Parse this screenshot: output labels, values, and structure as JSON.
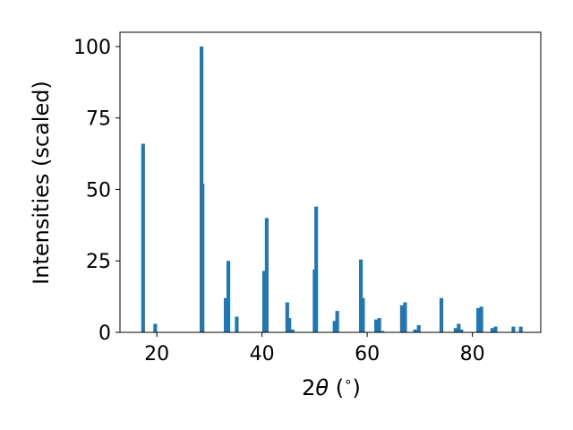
{
  "chart_data": {
    "type": "bar",
    "title": "",
    "xlabel_prefix": "2",
    "xlabel_symbol": "θ",
    "xlabel_suffix": " (",
    "xlabel_degree": "∘",
    "xlabel_close": ")",
    "ylabel": "Intensities (scaled)",
    "xlim": [
      13.0,
      93.0
    ],
    "ylim": [
      0,
      105
    ],
    "xticks": [
      20,
      40,
      60,
      80
    ],
    "yticks": [
      0,
      25,
      50,
      75,
      100
    ],
    "grid": false,
    "bar_color": "#1f77b4",
    "bin_width": 0.7,
    "x": [
      17.4,
      19.7,
      28.5,
      28.7,
      33.1,
      33.6,
      35.2,
      40.4,
      40.9,
      44.8,
      45.2,
      45.8,
      50.0,
      50.3,
      53.8,
      54.3,
      58.8,
      59.2,
      61.7,
      62.3,
      62.9,
      66.6,
      67.2,
      69.1,
      69.8,
      74.1,
      76.8,
      77.4,
      77.9,
      81.1,
      81.7,
      83.8,
      84.4,
      87.8,
      89.2
    ],
    "values": [
      66,
      3,
      100,
      52,
      12,
      25,
      5.5,
      21.5,
      40,
      10.5,
      5,
      1,
      22,
      44,
      4,
      7.5,
      25.5,
      12,
      4.5,
      5,
      0.5,
      9.5,
      10.5,
      1,
      2.5,
      12,
      1.5,
      3,
      1,
      8.5,
      9,
      1.5,
      2,
      2,
      2
    ]
  }
}
